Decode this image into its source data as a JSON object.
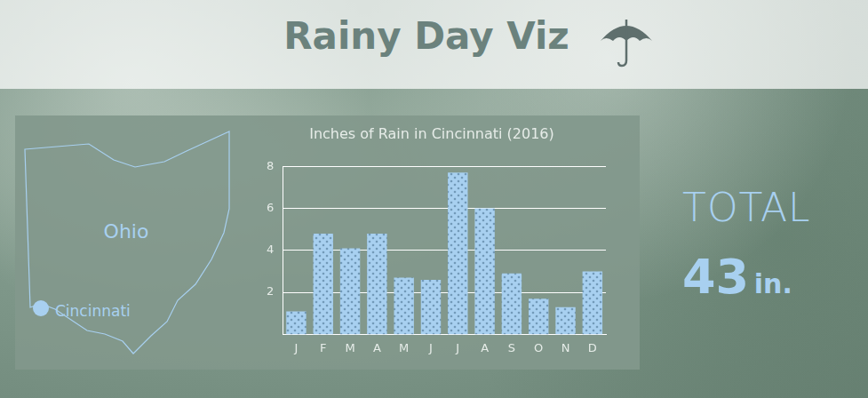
{
  "header": {
    "title": "Rainy Day Viz"
  },
  "map": {
    "region": "Ohio",
    "city": "Cincinnati"
  },
  "chart_data": {
    "type": "bar",
    "title": "Inches of Rain in Cincinnati (2016)",
    "categories": [
      "J",
      "F",
      "M",
      "A",
      "M",
      "J",
      "J",
      "A",
      "S",
      "O",
      "N",
      "D"
    ],
    "values": [
      1.1,
      4.8,
      4.1,
      4.8,
      2.7,
      2.6,
      7.7,
      6.0,
      2.9,
      1.7,
      1.3,
      3.0
    ],
    "color": "#a8d0f0",
    "ylim": [
      0,
      8
    ],
    "yticks": [
      2,
      4,
      6,
      8
    ],
    "grid": true
  },
  "total": {
    "label": "TOTAL",
    "value": 43,
    "unit": "in."
  }
}
